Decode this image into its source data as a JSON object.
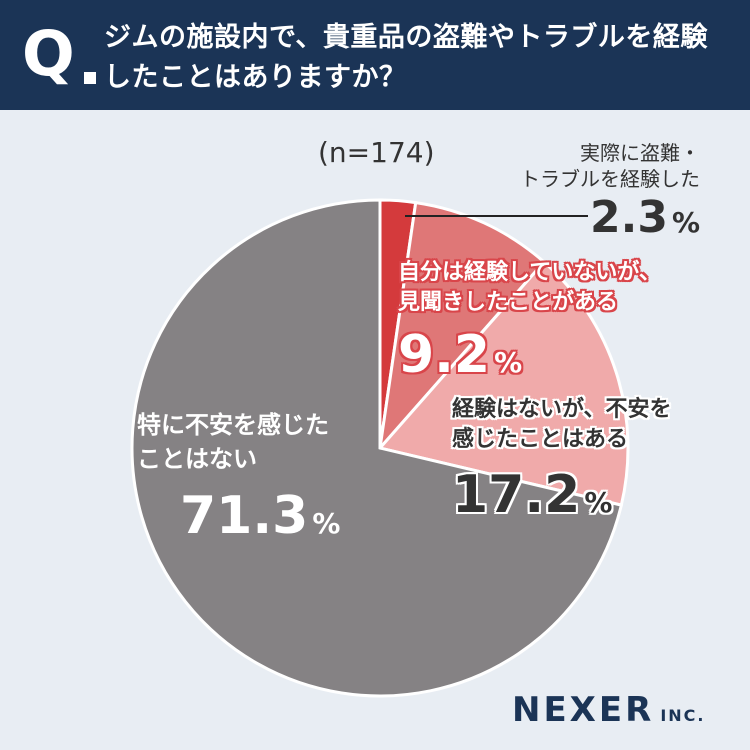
{
  "header": {
    "q_mark": "Q",
    "question_line1": "ジムの施設内で、貴重品の盗難やトラブルを経験",
    "question_line2": "したことはありますか？"
  },
  "sample_size": "(n=174)",
  "labels": {
    "experienced_line1": "実際に盗難・",
    "experienced_line2": "トラブルを経験した",
    "experienced_value": "2.3",
    "heard_line1": "自分は経験していないが、",
    "heard_line2": "見聞きしたことがある",
    "heard_value": "9.2",
    "anxious_line1": "経験はないが、不安を",
    "anxious_line2": "感じたことはある",
    "anxious_value": "17.2",
    "none_line1": "特に不安を感じた",
    "none_line2": "ことはない",
    "none_value": "71.3",
    "percent_sign": "%"
  },
  "logo": {
    "main": "NEXER",
    "inc": "INC."
  },
  "chart_data": {
    "type": "pie",
    "title": "ジムの施設内で、貴重品の盗難やトラブルを経験したことはありますか？",
    "n": 174,
    "unit": "%",
    "slices": [
      {
        "name": "実際に盗難・トラブルを経験した",
        "value": 2.3,
        "color": "#d43a3c"
      },
      {
        "name": "自分は経験していないが、見聞きしたことがある",
        "value": 9.2,
        "color": "#df7777"
      },
      {
        "name": "経験はないが、不安を感じたことはある",
        "value": 17.2,
        "color": "#f0aaaa"
      },
      {
        "name": "特に不安を感じたことはない",
        "value": 71.3,
        "color": "#858284"
      }
    ],
    "start_angle_deg": 0,
    "direction": "clockwise"
  },
  "colors": {
    "header_bg": "#1b3456",
    "page_bg": "#e8edf3",
    "text_dark": "#333333",
    "accent_red": "#d9454a"
  }
}
